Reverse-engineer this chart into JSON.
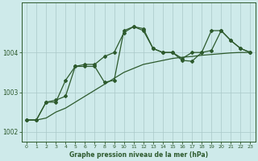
{
  "title": "Graphe pression niveau de la mer (hPa)",
  "background_color": "#ceeaea",
  "grid_color": "#aac8c8",
  "line_color": "#2d5a2d",
  "xlim": [
    -0.5,
    23.5
  ],
  "ylim": [
    1001.75,
    1005.25
  ],
  "yticks": [
    1002,
    1003,
    1004
  ],
  "xticks": [
    0,
    1,
    2,
    3,
    4,
    5,
    6,
    7,
    8,
    9,
    10,
    11,
    12,
    13,
    14,
    15,
    16,
    17,
    18,
    19,
    20,
    21,
    22,
    23
  ],
  "series1_x": [
    0,
    1,
    2,
    3,
    4,
    5,
    6,
    7,
    8,
    9,
    10,
    11,
    12,
    13,
    14,
    15,
    16,
    17,
    18,
    19,
    20,
    21,
    22,
    23
  ],
  "series1_y": [
    1002.3,
    1002.3,
    1002.35,
    1002.5,
    1002.6,
    1002.75,
    1002.9,
    1003.05,
    1003.2,
    1003.35,
    1003.5,
    1003.6,
    1003.7,
    1003.75,
    1003.8,
    1003.85,
    1003.88,
    1003.9,
    1003.93,
    1003.95,
    1003.97,
    1003.99,
    1004.0,
    1004.0
  ],
  "series2_x": [
    0,
    1,
    2,
    3,
    4,
    5,
    6,
    7,
    8,
    9,
    10,
    11,
    12,
    13,
    14,
    15,
    16,
    17,
    18,
    19,
    20,
    21,
    22,
    23
  ],
  "series2_y": [
    1002.3,
    1002.3,
    1002.75,
    1002.75,
    1003.3,
    1003.65,
    1003.65,
    1003.65,
    1003.25,
    1003.3,
    1004.55,
    1004.65,
    1004.55,
    1004.1,
    1004.0,
    1004.0,
    1003.85,
    1004.0,
    1004.0,
    1004.05,
    1004.55,
    1004.3,
    1004.1,
    1004.0
  ],
  "series3_x": [
    0,
    1,
    2,
    3,
    4,
    5,
    6,
    7,
    8,
    9,
    10,
    11,
    12,
    13,
    14,
    15,
    16,
    17,
    18,
    19,
    20,
    21,
    22,
    23
  ],
  "series3_y": [
    1002.3,
    1002.3,
    1002.75,
    1002.8,
    1002.9,
    1003.65,
    1003.7,
    1003.7,
    1003.9,
    1004.0,
    1004.5,
    1004.65,
    1004.6,
    1004.1,
    1004.0,
    1004.0,
    1003.8,
    1003.78,
    1004.0,
    1004.55,
    1004.55,
    1004.3,
    1004.1,
    1004.0
  ]
}
